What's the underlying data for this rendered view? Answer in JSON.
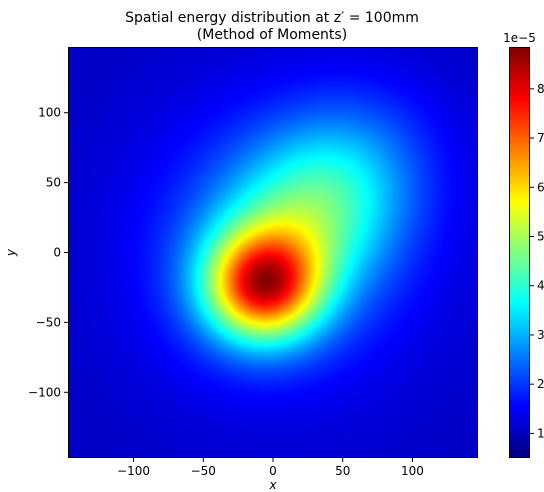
{
  "chart_data": {
    "type": "heatmap",
    "title": "Spatial energy distribution at z′ = 100mm",
    "subtitle": "(Method of Moments)",
    "xlabel": "x",
    "ylabel": "y",
    "xlim": [
      -147,
      147
    ],
    "ylim": [
      -147,
      147
    ],
    "x_ticks": [
      -100,
      -50,
      0,
      50,
      100
    ],
    "y_ticks": [
      -100,
      -50,
      0,
      50,
      100
    ],
    "x_tick_labels": [
      "−100",
      "−50",
      "0",
      "50",
      "100"
    ],
    "y_tick_labels": [
      "−100",
      "−50",
      "0",
      "50",
      "100"
    ],
    "colormap": "jet",
    "colorbar": {
      "min": 5e-06,
      "max": 8.85e-05,
      "ticks": [
        1,
        2,
        3,
        4,
        5,
        6,
        7,
        8
      ],
      "tick_labels": [
        "1",
        "2",
        "3",
        "4",
        "5",
        "6",
        "7",
        "8"
      ],
      "offset_label": "1e−5"
    },
    "peak": {
      "x": -7,
      "y": -24,
      "value": 8.85e-05
    },
    "grid": false
  }
}
